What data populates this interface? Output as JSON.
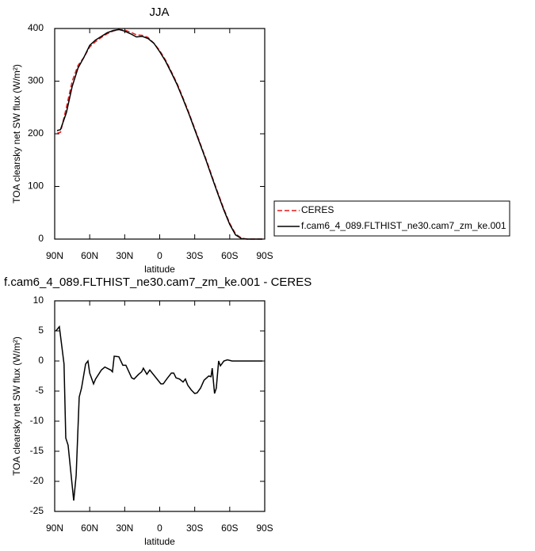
{
  "chart_data": [
    {
      "type": "line",
      "title": "JJA",
      "xlabel": "latitude",
      "ylabel": "TOA clearsky net SW flux (W/m²)",
      "xlim": [
        90,
        -90
      ],
      "ylim": [
        0,
        400
      ],
      "xticks": [
        {
          "value": 90,
          "label": "90N"
        },
        {
          "value": 60,
          "label": "60N"
        },
        {
          "value": 30,
          "label": "30N"
        },
        0,
        {
          "value": -30,
          "label": "30S"
        },
        {
          "value": -60,
          "label": "60S"
        },
        {
          "value": -90,
          "label": "90S"
        }
      ],
      "yticks": [
        0,
        100,
        200,
        300,
        400
      ],
      "x": [
        88,
        85,
        80,
        75,
        70,
        65,
        60,
        55,
        50,
        45,
        40,
        35,
        30,
        25,
        20,
        15,
        10,
        5,
        0,
        -5,
        -10,
        -15,
        -20,
        -25,
        -30,
        -35,
        -40,
        -45,
        -50,
        -55,
        -60,
        -65,
        -70,
        -75,
        -80,
        -85,
        -88
      ],
      "series": [
        {
          "name": "CERES",
          "color": "#e41a1c",
          "dashed": true,
          "values": [
            201,
            203,
            250,
            300,
            330,
            345,
            365,
            375,
            383,
            390,
            395,
            398,
            397,
            393,
            388,
            387,
            383,
            372,
            358,
            340,
            318,
            295,
            268,
            240,
            210,
            180,
            150,
            118,
            87,
            57,
            30,
            10,
            2,
            0,
            0,
            0,
            0
          ]
        },
        {
          "name": "f.cam6_4_089.FLTHIST_ne30.cam7_zm_ke.001",
          "color": "#000000",
          "dashed": false,
          "values": [
            206,
            208,
            240,
            290,
            325,
            345,
            368,
            378,
            385,
            392,
            396,
            398,
            395,
            390,
            384,
            385,
            381,
            372,
            356,
            338,
            316,
            293,
            266,
            238,
            208,
            178,
            148,
            116,
            85,
            55,
            28,
            8,
            1,
            0,
            0,
            0,
            0
          ]
        }
      ]
    },
    {
      "type": "line",
      "title": "f.cam6_4_089.FLTHIST_ne30.cam7_zm_ke.001 - CERES",
      "xlabel": "latitude",
      "ylabel": "TOA clearsky net SW flux (W/m²)",
      "xlim": [
        90,
        -90
      ],
      "ylim": [
        -25,
        10
      ],
      "xticks": [
        {
          "value": 90,
          "label": "90N"
        },
        {
          "value": 60,
          "label": "60N"
        },
        {
          "value": 30,
          "label": "30N"
        },
        0,
        {
          "value": -30,
          "label": "30S"
        },
        {
          "value": -60,
          "label": "60S"
        },
        {
          "value": -90,
          "label": "90S"
        }
      ],
      "yticks": [
        -25,
        -20,
        -15,
        -10,
        -5,
        0,
        5,
        10
      ],
      "x": [
        89,
        86,
        82,
        80.5,
        78.5,
        73.7,
        71.6,
        69,
        67,
        63.5,
        61.5,
        60,
        56.7,
        55,
        50,
        47,
        42,
        40.5,
        39,
        35,
        31.6,
        29,
        24,
        22,
        18,
        15.5,
        14,
        11,
        8.5,
        -1,
        -3,
        -6,
        -10,
        -12,
        -14,
        -17,
        -20,
        -22,
        -24,
        -27,
        -30,
        -32,
        -35,
        -38,
        -42,
        -44,
        -45,
        -47,
        -48.5,
        -50.5,
        -52,
        -55,
        -58,
        -62,
        -70,
        -80,
        -88
      ],
      "color": "#000000",
      "values": [
        5,
        5.7,
        -0.5,
        -12.8,
        -14,
        -23.2,
        -19,
        -6,
        -4.5,
        -0.5,
        0,
        -2,
        -3.8,
        -3,
        -1.5,
        -1,
        -1.5,
        -1.8,
        0.8,
        0.7,
        -0.7,
        -0.7,
        -2.8,
        -3,
        -2.2,
        -1.8,
        -1.2,
        -2.2,
        -1.5,
        -3.8,
        -3.8,
        -3,
        -2,
        -2,
        -2.8,
        -3,
        -3.5,
        -3,
        -4,
        -4.8,
        -5.4,
        -5.3,
        -4.5,
        -3.2,
        -2.5,
        -2.6,
        -1.2,
        -5.4,
        -4.5,
        0,
        -0.8,
        0,
        0.2,
        0,
        0,
        0,
        0
      ]
    }
  ]
}
